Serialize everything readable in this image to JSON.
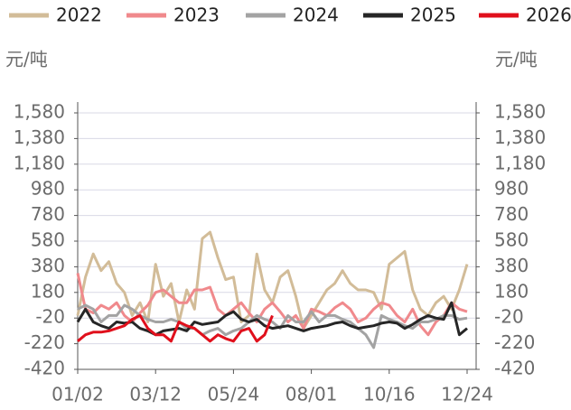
{
  "chart_data": {
    "type": "line",
    "y_label": "元/吨",
    "categories": [
      "01/02",
      null,
      null,
      null,
      null,
      null,
      null,
      null,
      null,
      null,
      "03/12",
      null,
      null,
      null,
      null,
      null,
      null,
      null,
      null,
      null,
      "05/24",
      null,
      null,
      null,
      null,
      null,
      null,
      null,
      null,
      null,
      "08/01",
      null,
      null,
      null,
      null,
      null,
      null,
      null,
      null,
      null,
      "10/16",
      null,
      null,
      null,
      null,
      null,
      null,
      null,
      null,
      null,
      "12/24"
    ],
    "series": [
      {
        "name": "2022",
        "color": "#d2bc98",
        "values": [
          0,
          300,
          480,
          350,
          420,
          250,
          180,
          0,
          100,
          -50,
          400,
          150,
          250,
          -50,
          200,
          50,
          600,
          650,
          450,
          280,
          300,
          -50,
          0,
          480,
          200,
          100,
          300,
          350,
          150,
          -100,
          0,
          100,
          200,
          250,
          350,
          250,
          200,
          200,
          180,
          50,
          400,
          450,
          500,
          200,
          50,
          0,
          100,
          150,
          50,
          200,
          400
        ]
      },
      {
        "name": "2023",
        "color": "#f0898c",
        "values": [
          330,
          50,
          20,
          80,
          50,
          100,
          0,
          -50,
          20,
          80,
          180,
          200,
          150,
          100,
          100,
          200,
          200,
          220,
          50,
          0,
          50,
          100,
          20,
          -50,
          50,
          100,
          30,
          -50,
          0,
          -100,
          50,
          30,
          0,
          60,
          100,
          50,
          -50,
          -20,
          50,
          100,
          80,
          0,
          -50,
          50,
          -80,
          -150,
          -50,
          0,
          100,
          50,
          30
        ]
      },
      {
        "name": "2024",
        "color": "#a3a3a3",
        "values": [
          50,
          80,
          50,
          -50,
          0,
          0,
          80,
          50,
          0,
          -30,
          -50,
          -50,
          -30,
          -50,
          -100,
          -100,
          -150,
          -120,
          -100,
          -150,
          -120,
          -100,
          -50,
          0,
          -30,
          -50,
          -100,
          0,
          -50,
          -50,
          30,
          -50,
          0,
          0,
          -30,
          -50,
          -100,
          -150,
          -250,
          0,
          -30,
          -50,
          -80,
          -100,
          -50,
          -50,
          -30,
          0,
          0,
          -30,
          -20
        ]
      },
      {
        "name": "2025",
        "color": "#262626",
        "values": [
          -50,
          50,
          -50,
          -80,
          -100,
          -50,
          -60,
          -50,
          -100,
          -120,
          -150,
          -120,
          -110,
          -100,
          -120,
          -50,
          -70,
          -60,
          -50,
          0,
          30,
          -30,
          -50,
          -30,
          -80,
          -100,
          -90,
          -80,
          -100,
          -120,
          -100,
          -90,
          -80,
          -60,
          -50,
          -80,
          -100,
          -90,
          -80,
          -60,
          -50,
          -60,
          -100,
          -70,
          -30,
          0,
          -20,
          -30,
          100,
          -150,
          -100
        ]
      },
      {
        "name": "2026",
        "color": "#e0101c",
        "values": [
          -200,
          -150,
          -130,
          -130,
          -120,
          -100,
          -80,
          -30,
          0,
          -100,
          -150,
          -150,
          -200,
          -50,
          -80,
          -100,
          -150,
          -200,
          -150,
          -180,
          -200,
          -120,
          -100,
          -200,
          -150,
          0,
          null,
          null,
          null,
          null,
          null,
          null,
          null,
          null,
          null,
          null,
          null,
          null,
          null,
          null,
          null,
          null,
          null,
          null,
          null,
          null,
          null,
          null,
          null,
          null,
          null
        ]
      }
    ],
    "ylim": [
      -420,
      1580
    ],
    "yticks": [
      -420,
      {
        "value": -220,
        "label": "-220"
      },
      {
        "value": -20,
        "label": "-20"
      },
      180,
      380,
      580,
      780,
      980,
      {
        "value": 1180,
        "label": "1,180"
      },
      {
        "value": 1380,
        "label": "1,380"
      },
      {
        "value": 1580,
        "label": "1,580"
      }
    ],
    "grid": true
  }
}
